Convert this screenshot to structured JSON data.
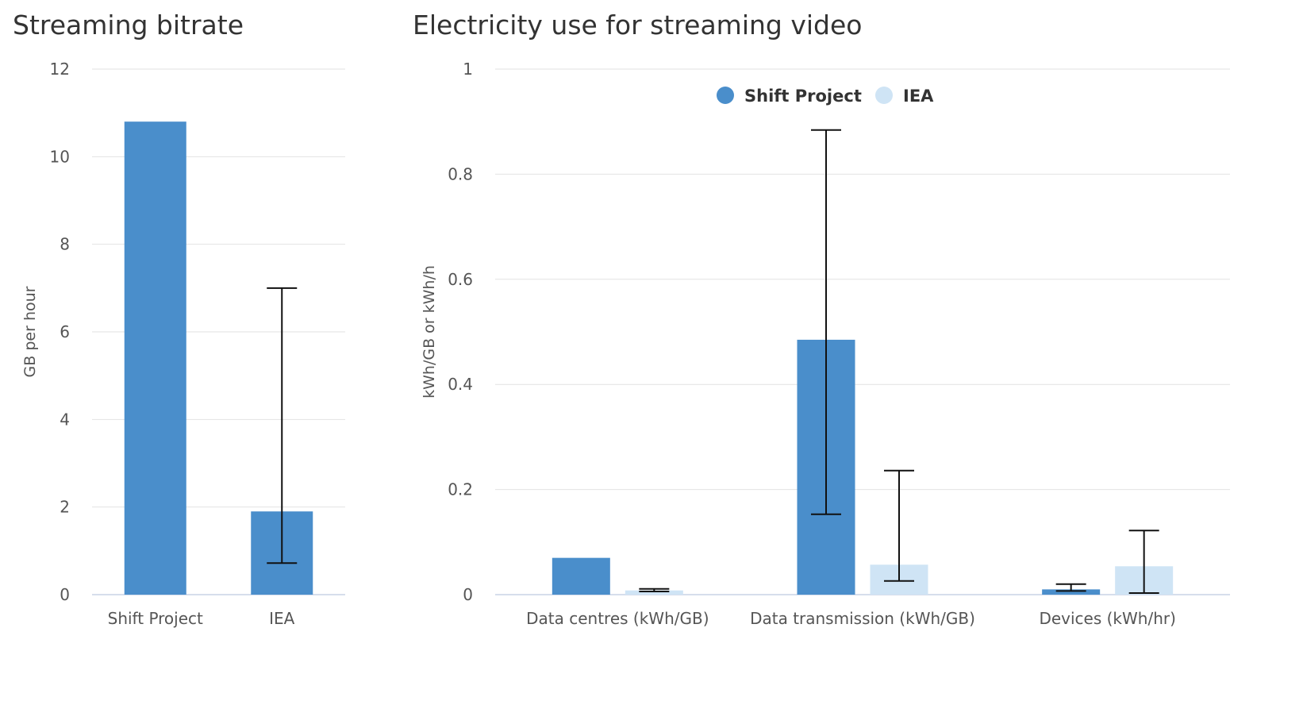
{
  "chart_data": [
    {
      "type": "bar",
      "title": "Streaming bitrate",
      "xlabel": "",
      "ylabel": "GB per hour",
      "ylim": [
        0,
        12
      ],
      "yticks": [
        0,
        2,
        4,
        6,
        8,
        10,
        12
      ],
      "grid": true,
      "categories": [
        "Shift Project",
        "IEA"
      ],
      "values": [
        10.8,
        1.9
      ],
      "error_bars": [
        null,
        {
          "low": 0.72,
          "high": 7.0
        }
      ],
      "colors": [
        "#4a8ecb",
        "#4a8ecb"
      ]
    },
    {
      "type": "bar",
      "title": "Electricity use for streaming video",
      "xlabel": "",
      "ylabel": "kWh/GB or kWh/h",
      "ylim": [
        0,
        1
      ],
      "yticks": [
        0,
        0.2,
        0.4,
        0.6,
        0.8,
        1
      ],
      "grid": true,
      "legend_position": "top",
      "categories": [
        "Data centres (kWh/GB)",
        "Data transmission (kWh/GB)",
        "Devices (kWh/hr)"
      ],
      "series": [
        {
          "name": "Shift Project",
          "color": "#4a8ecb",
          "values": [
            0.07,
            0.485,
            0.01
          ],
          "error_bars": [
            null,
            {
              "low": 0.153,
              "high": 0.884
            },
            {
              "low": 0.007,
              "high": 0.02
            }
          ]
        },
        {
          "name": "IEA",
          "color": "#cfe4f5",
          "values": [
            0.008,
            0.057,
            0.054
          ],
          "error_bars": [
            {
              "low": 0.006,
              "high": 0.011
            },
            {
              "low": 0.026,
              "high": 0.236
            },
            {
              "low": 0.003,
              "high": 0.122
            }
          ]
        }
      ]
    }
  ]
}
